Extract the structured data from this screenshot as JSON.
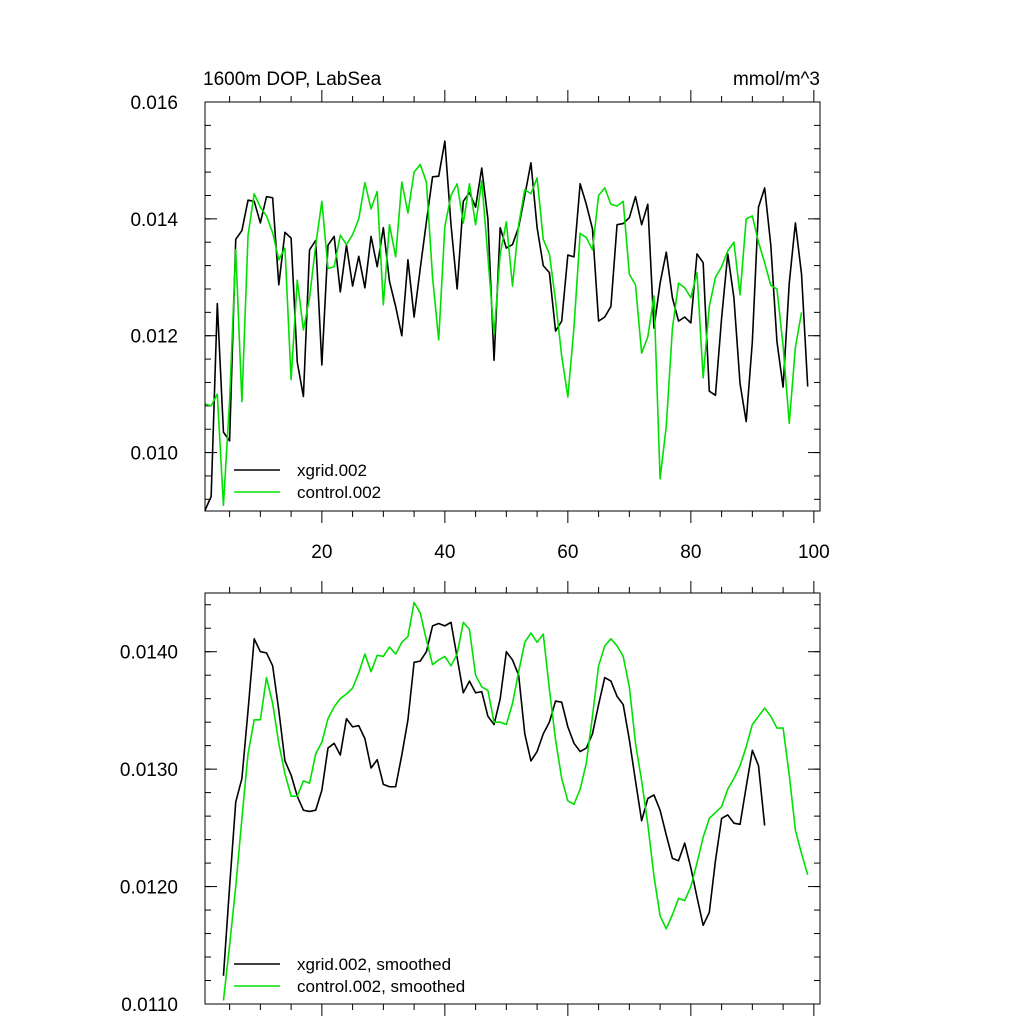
{
  "chart_data": [
    {
      "type": "line",
      "title": "1600m DOP, LabSea",
      "units": "mmol/m^3",
      "xlim": [
        1,
        101
      ],
      "ylim": [
        0.009,
        0.016
      ],
      "x_ticks": [
        20,
        40,
        60,
        80,
        100
      ],
      "x_tick_labels": [
        "20",
        "40",
        "60",
        "80",
        "100"
      ],
      "y_ticks": [
        0.01,
        0.012,
        0.014,
        0.016
      ],
      "y_tick_labels": [
        "0.010",
        "0.012",
        "0.014",
        "0.016"
      ],
      "grid": false,
      "legend_position": "bottom-left",
      "colors": [
        "#000000",
        "#00e000"
      ],
      "x_start": 1,
      "series": [
        {
          "name": "xgrid.002",
          "values": [
            0.00901,
            0.00925,
            0.01255,
            0.01035,
            0.0102,
            0.01365,
            0.0138,
            0.01432,
            0.0143,
            0.01393,
            0.01438,
            0.01436,
            0.01287,
            0.01377,
            0.01367,
            0.01155,
            0.01096,
            0.01347,
            0.01363,
            0.0115,
            0.01355,
            0.0137,
            0.01275,
            0.01355,
            0.01285,
            0.01336,
            0.01282,
            0.0137,
            0.01318,
            0.01385,
            0.01293,
            0.0125,
            0.012,
            0.0133,
            0.01232,
            0.01315,
            0.01395,
            0.01472,
            0.01473,
            0.01533,
            0.0139,
            0.0128,
            0.0143,
            0.01445,
            0.0142,
            0.01487,
            0.014,
            0.01158,
            0.01385,
            0.0135,
            0.01356,
            0.01386,
            0.0144,
            0.01496,
            0.01385,
            0.0132,
            0.01308,
            0.01208,
            0.01225,
            0.01338,
            0.01335,
            0.0146,
            0.01425,
            0.01383,
            0.01225,
            0.01232,
            0.0125,
            0.0139,
            0.01392,
            0.01402,
            0.01438,
            0.0139,
            0.01425,
            0.01213,
            0.0129,
            0.01343,
            0.01265,
            0.01225,
            0.01232,
            0.01222,
            0.0134,
            0.01325,
            0.01105,
            0.01098,
            0.0123,
            0.0134,
            0.01265,
            0.01118,
            0.01053,
            0.0119,
            0.0142,
            0.01453,
            0.01355,
            0.0119,
            0.01112,
            0.0129,
            0.01393,
            0.01305,
            0.01113
          ]
        },
        {
          "name": "control.002",
          "values": [
            0.01083,
            0.0108,
            0.011,
            0.0091,
            0.0109,
            0.01347,
            0.01087,
            0.01372,
            0.01443,
            0.0142,
            0.01405,
            0.01376,
            0.0133,
            0.0135,
            0.01125,
            0.01295,
            0.0121,
            0.01265,
            0.01355,
            0.0143,
            0.01315,
            0.01318,
            0.01372,
            0.01356,
            0.01373,
            0.014,
            0.01462,
            0.01417,
            0.01447,
            0.01253,
            0.0139,
            0.01335,
            0.01463,
            0.0141,
            0.0148,
            0.01493,
            0.01463,
            0.013,
            0.01193,
            0.01387,
            0.0144,
            0.0146,
            0.01393,
            0.0146,
            0.0139,
            0.01465,
            0.01335,
            0.01202,
            0.0134,
            0.01395,
            0.01285,
            0.0139,
            0.0145,
            0.01443,
            0.0147,
            0.01365,
            0.0134,
            0.0126,
            0.01165,
            0.01095,
            0.01215,
            0.01375,
            0.01368,
            0.01347,
            0.0144,
            0.01453,
            0.01425,
            0.01422,
            0.0143,
            0.01305,
            0.01287,
            0.0117,
            0.01198,
            0.01268,
            0.00955,
            0.01045,
            0.01212,
            0.0129,
            0.01282,
            0.01265,
            0.01308,
            0.01128,
            0.0125,
            0.013,
            0.01318,
            0.01345,
            0.0136,
            0.0127,
            0.014,
            0.01405,
            0.0136,
            0.01325,
            0.01286,
            0.0128,
            0.01183,
            0.0105,
            0.0118,
            0.0124
          ]
        }
      ]
    },
    {
      "type": "line",
      "title": "",
      "xlim": [
        1,
        101
      ],
      "ylim": [
        0.011,
        0.0145
      ],
      "x_ticks": [
        20,
        40,
        60,
        80,
        100
      ],
      "x_tick_labels": [],
      "y_ticks": [
        0.011,
        0.012,
        0.013,
        0.014
      ],
      "y_tick_labels": [
        "0.0110",
        "0.0120",
        "0.0130",
        "0.0140"
      ],
      "grid": false,
      "legend_position": "bottom-left",
      "colors": [
        "#000000",
        "#00e000"
      ],
      "x_start": 4,
      "series": [
        {
          "name": "xgrid.002, smoothed",
          "values": [
            0.01124,
            0.012,
            0.01272,
            0.01292,
            0.0135,
            0.01411,
            0.014,
            0.01399,
            0.01388,
            0.0135,
            0.01307,
            0.01295,
            0.01277,
            0.01265,
            0.01264,
            0.01265,
            0.01282,
            0.01318,
            0.01322,
            0.01312,
            0.01343,
            0.01336,
            0.01337,
            0.01326,
            0.01301,
            0.01308,
            0.01287,
            0.01285,
            0.01285,
            0.01312,
            0.01342,
            0.01391,
            0.01392,
            0.014,
            0.01422,
            0.01424,
            0.01422,
            0.01425,
            0.01395,
            0.01365,
            0.01375,
            0.01365,
            0.01366,
            0.01345,
            0.01338,
            0.0136,
            0.014,
            0.01393,
            0.0138,
            0.0133,
            0.01307,
            0.01315,
            0.0133,
            0.0134,
            0.01358,
            0.01357,
            0.01336,
            0.01322,
            0.01315,
            0.01318,
            0.0133,
            0.01355,
            0.01378,
            0.01375,
            0.01362,
            0.01355,
            0.01325,
            0.0129,
            0.01256,
            0.01275,
            0.01278,
            0.01265,
            0.01244,
            0.01224,
            0.01222,
            0.01237,
            0.01216,
            0.01191,
            0.01167,
            0.01178,
            0.01222,
            0.01258,
            0.01261,
            0.01254,
            0.01253,
            0.01285,
            0.01316,
            0.01303,
            0.01252
          ]
        },
        {
          "name": "control.002, smoothed",
          "values": [
            0.01103,
            0.0115,
            0.012,
            0.01258,
            0.01313,
            0.01342,
            0.01342,
            0.01378,
            0.01356,
            0.01322,
            0.01296,
            0.01277,
            0.01277,
            0.0129,
            0.01288,
            0.01313,
            0.01323,
            0.01343,
            0.01353,
            0.0136,
            0.01364,
            0.01369,
            0.01382,
            0.01398,
            0.01383,
            0.01397,
            0.01396,
            0.01404,
            0.01398,
            0.01408,
            0.01413,
            0.01442,
            0.01433,
            0.0141,
            0.01389,
            0.01393,
            0.01396,
            0.01388,
            0.01398,
            0.01425,
            0.01419,
            0.0138,
            0.0137,
            0.01367,
            0.0134,
            0.0134,
            0.01338,
            0.01356,
            0.01383,
            0.01408,
            0.01416,
            0.01408,
            0.01415,
            0.01368,
            0.01325,
            0.01292,
            0.01273,
            0.0127,
            0.01283,
            0.01305,
            0.01345,
            0.01388,
            0.01405,
            0.01411,
            0.01405,
            0.01396,
            0.0137,
            0.01322,
            0.0129,
            0.01253,
            0.01209,
            0.01175,
            0.01164,
            0.01176,
            0.0119,
            0.01188,
            0.012,
            0.0122,
            0.01242,
            0.01258,
            0.01263,
            0.01268,
            0.01283,
            0.01292,
            0.01303,
            0.01319,
            0.01338,
            0.01345,
            0.01352,
            0.01345,
            0.01335,
            0.01335,
            0.01295,
            0.01248,
            0.01228,
            0.0121
          ]
        }
      ]
    }
  ]
}
